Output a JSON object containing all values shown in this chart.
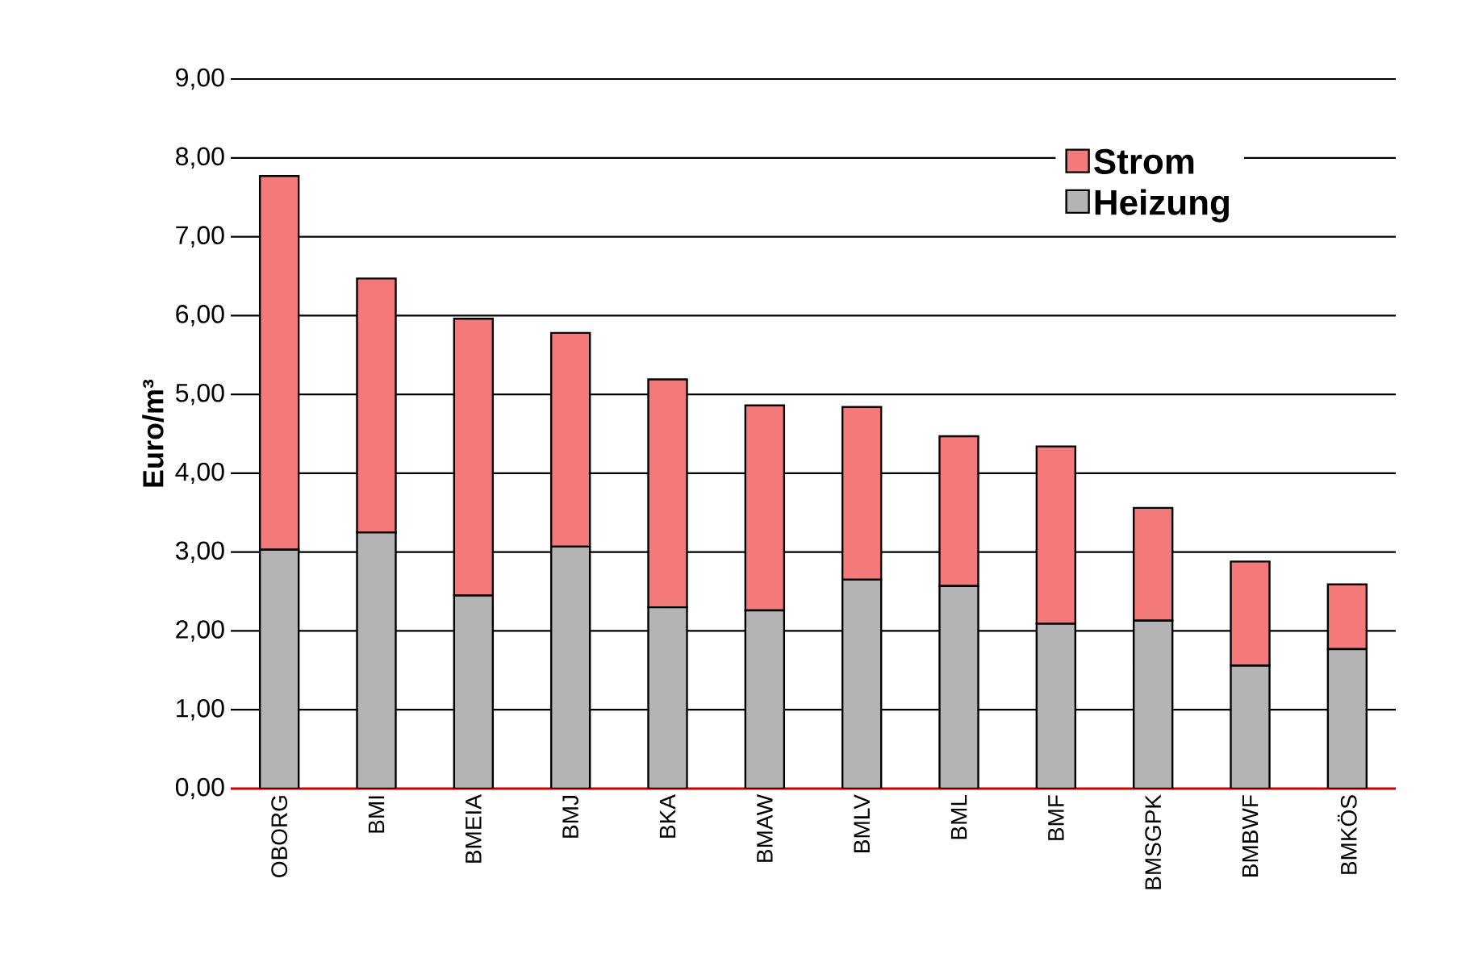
{
  "chart_data": {
    "type": "bar",
    "stacked": true,
    "ylabel": "Euro/m³",
    "categories": [
      "OBORG",
      "BMI",
      "BMEIA",
      "BMJ",
      "BKA",
      "BMAW",
      "BMLV",
      "BML",
      "BMF",
      "BMSGPK",
      "BMBWF",
      "BMKÖS"
    ],
    "series": [
      {
        "name": "Heizung",
        "color": "#b4b4b4",
        "values": [
          3.03,
          3.25,
          2.45,
          3.07,
          2.3,
          2.26,
          2.65,
          2.57,
          2.09,
          2.13,
          1.56,
          1.77
        ]
      },
      {
        "name": "Strom",
        "color": "#f47a7a",
        "values": [
          4.74,
          3.22,
          3.51,
          2.71,
          2.89,
          2.6,
          2.19,
          1.9,
          2.25,
          1.43,
          1.32,
          0.82
        ]
      }
    ],
    "ylim": [
      0,
      9
    ],
    "yticks": [
      {
        "value": 0,
        "label": "0,00"
      },
      {
        "value": 1,
        "label": "1,00"
      },
      {
        "value": 2,
        "label": "2,00"
      },
      {
        "value": 3,
        "label": "3,00"
      },
      {
        "value": 4,
        "label": "4,00"
      },
      {
        "value": 5,
        "label": "5,00"
      },
      {
        "value": 6,
        "label": "6,00"
      },
      {
        "value": 7,
        "label": "7,00"
      },
      {
        "value": 8,
        "label": "8,00"
      },
      {
        "value": 9,
        "label": "9,00"
      }
    ],
    "grid": "y",
    "legend": "top right"
  }
}
